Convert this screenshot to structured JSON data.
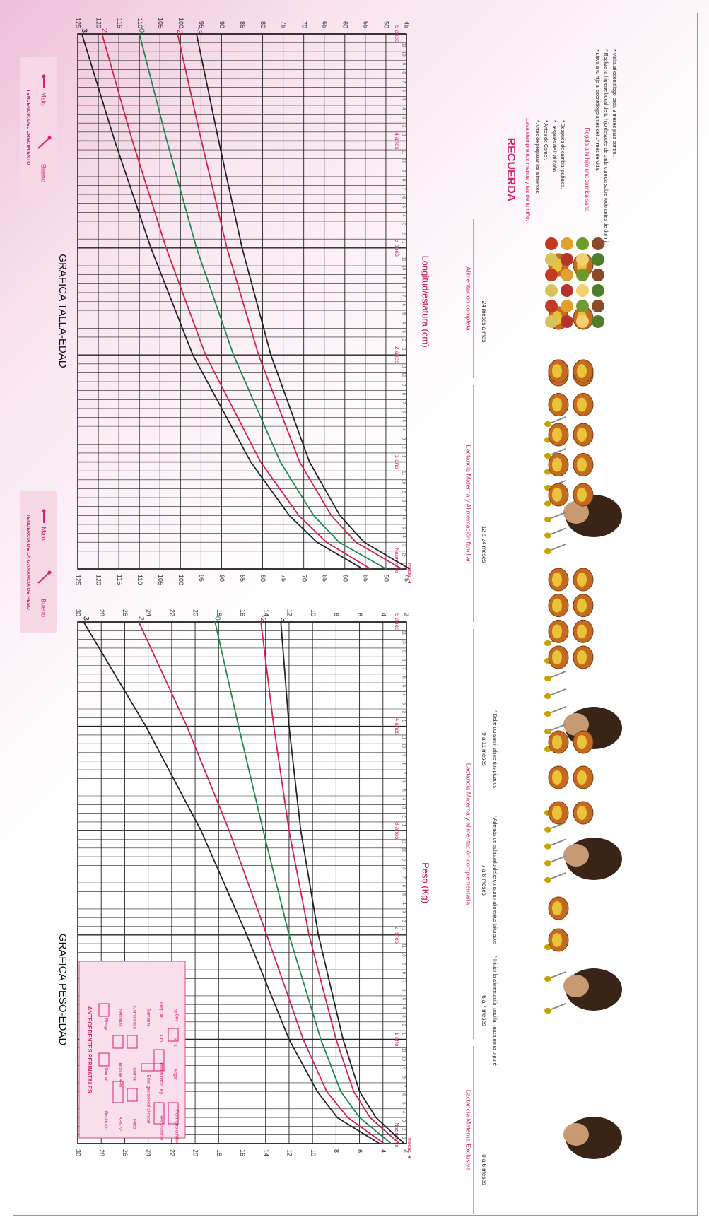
{
  "colors": {
    "magenta": "#d6226f",
    "pink": "#d6226f",
    "green": "#1e8a4c",
    "red": "#d6224a",
    "black": "#222222",
    "grid": "#222222"
  },
  "peso": {
    "title": "GRAFICA PESO-EDAD",
    "axis_label": "Peso (Kg)",
    "trend_title": "TENDENCIA DE LA GANANCIA DE PESO",
    "trend_good": "Bueno",
    "trend_bad": "Malo",
    "meses_label": "meses ◄",
    "nac_label": "Nacimiento",
    "year_labels": [
      "1 año",
      "2 años",
      "3 años",
      "4 años",
      "5 años"
    ],
    "antecedentes": {
      "title": "ANTECEDENTES PERINATALES",
      "labels": [
        "Gestación",
        "Normal",
        "Riesgo",
        "APN Nº",
        "Inicio de APN",
        "Semanas",
        "Parto",
        "Normal",
        "Complicado",
        "Edad gestacional al nacer",
        "Semanas",
        "Peso al nacer",
        "Kg.",
        "Talla al nacer",
        "Cm.",
        "Apgar",
        "1'",
        "5'",
        "Perímetro cefálico",
        "Cm.",
        "Hosp. inf.",
        "nb"
      ]
    }
  },
  "talla": {
    "title": "GRAFICA TALLA-EDAD",
    "axis_label": "Longitud/estatura (cm)",
    "trend_title": "TENDENCIA DEL CRECIMIENTO",
    "trend_good": "Bueno",
    "trend_bad": "Malo",
    "meses_label": "meses ◄",
    "nac_label": "Nacimiento",
    "year_labels": [
      "1 año",
      "2 años",
      "3 años",
      "4 años",
      "5 años"
    ]
  },
  "feeding": {
    "headers": [
      "Lactancia Materna Exclusiva",
      "Lactancia Materna y alimentación complementaria",
      "Lactancia Materna y Alimentación familiar",
      "Alimentación completa"
    ],
    "stages": [
      {
        "age": "0 a 6 meses",
        "note": ""
      },
      {
        "age": "6 a 7 meses",
        "note": "* Iniciar la alimentación papilla, mazamorra o puré"
      },
      {
        "age": "7 a 8 meses",
        "note": "* Además de aplastado debe consumir alimentos triturados"
      },
      {
        "age": "9 a 11 meses",
        "note": "* Debe consumir alimentos picados"
      },
      {
        "age": "12 a 24 meses",
        "note": ""
      },
      {
        "age": "24 meses a más",
        "note": ""
      }
    ]
  },
  "recuerda": {
    "title": "RECUERDA",
    "sub1": "Lava siempre tus manos y las de tu niño:",
    "items1": [
      "* Antes de preparar los alimentos.",
      "* Antes de Comer.",
      "* Después de ir al baño.",
      "* Después de cambiar pañales."
    ],
    "sub2": "Regala a tu hijo una sonrisa sana",
    "items2": [
      "* Lleva a tu hijo al odontólogo antes del 1º mes de vida.",
      "* Realiza la higiene bucal de tu hijo después de cada comida sobre todo antes de dormir.",
      "* Visita al odontólogo cada 3 meses para control."
    ]
  },
  "chart_data": [
    {
      "type": "line",
      "title": "GRAFICA PESO-EDAD",
      "xlabel": "meses",
      "ylabel": "Peso (Kg)",
      "xlim": [
        0,
        60
      ],
      "ylim": [
        2,
        30
      ],
      "y_ticks": [
        2,
        4,
        6,
        8,
        10,
        12,
        14,
        16,
        18,
        20,
        22,
        24,
        26,
        28,
        30
      ],
      "x_tick_labels": [
        "Nacimiento",
        "1 año",
        "2 años",
        "3 años",
        "4 años",
        "5 años"
      ],
      "series": [
        {
          "name": "3",
          "color": "#222222",
          "x": [
            0,
            3,
            6,
            12,
            24,
            36,
            48,
            60
          ],
          "y": [
            4.3,
            7.9,
            9.6,
            12.0,
            15.6,
            19.5,
            24.2,
            29.5
          ]
        },
        {
          "name": "2",
          "color": "#d6224a",
          "x": [
            0,
            3,
            6,
            12,
            24,
            36,
            48,
            60
          ],
          "y": [
            3.9,
            7.0,
            8.8,
            10.8,
            13.9,
            17.1,
            20.7,
            24.8
          ]
        },
        {
          "name": "0",
          "color": "#1e8a4c",
          "x": [
            0,
            3,
            6,
            12,
            24,
            36,
            48,
            60
          ],
          "y": [
            3.3,
            6.0,
            7.6,
            9.3,
            12.0,
            14.2,
            16.3,
            18.3
          ]
        },
        {
          "name": "-2",
          "color": "#d6224a",
          "x": [
            0,
            3,
            6,
            12,
            24,
            36,
            48,
            60
          ],
          "y": [
            2.6,
            5.1,
            6.5,
            8.0,
            10.3,
            12.0,
            13.3,
            14.4
          ]
        },
        {
          "name": "-3",
          "color": "#222222",
          "x": [
            0,
            3,
            6,
            12,
            24,
            36,
            48,
            60
          ],
          "y": [
            2.2,
            4.6,
            6.0,
            7.4,
            9.5,
            11.0,
            12.0,
            12.7
          ]
        }
      ]
    },
    {
      "type": "line",
      "title": "GRAFICA TALLA-EDAD",
      "xlabel": "meses",
      "ylabel": "Longitud/estatura (cm)",
      "xlim": [
        0,
        60
      ],
      "ylim": [
        45,
        125
      ],
      "y_ticks": [
        45,
        50,
        55,
        60,
        65,
        70,
        75,
        80,
        85,
        90,
        95,
        100,
        105,
        110,
        115,
        120,
        125
      ],
      "x_tick_labels": [
        "Nacimiento",
        "1 año",
        "2 años",
        "3 años",
        "4 años",
        "5 años"
      ],
      "series": [
        {
          "name": "3",
          "color": "#222222",
          "x": [
            0,
            3,
            6,
            12,
            24,
            36,
            48,
            60
          ],
          "y": [
            55.6,
            66.8,
            73.5,
            82.9,
            97.0,
            107.2,
            116.0,
            124.0
          ]
        },
        {
          "name": "2",
          "color": "#d6224a",
          "x": [
            0,
            3,
            6,
            12,
            24,
            36,
            48,
            60
          ],
          "y": [
            53.7,
            64.5,
            71.2,
            80.5,
            93.9,
            103.5,
            111.7,
            119.1
          ]
        },
        {
          "name": "0",
          "color": "#1e8a4c",
          "x": [
            0,
            3,
            6,
            12,
            24,
            36,
            48,
            60
          ],
          "y": [
            49.9,
            61.4,
            67.6,
            75.7,
            87.1,
            96.1,
            103.3,
            110.0
          ]
        },
        {
          "name": "-2",
          "color": "#d6224a",
          "x": [
            0,
            3,
            6,
            12,
            24,
            36,
            48,
            60
          ],
          "y": [
            46.1,
            57.3,
            63.3,
            71.0,
            81.0,
            88.7,
            94.9,
            100.7
          ]
        },
        {
          "name": "-3",
          "color": "#222222",
          "x": [
            0,
            3,
            6,
            12,
            24,
            36,
            48,
            60
          ],
          "y": [
            44.2,
            55.3,
            61.2,
            68.6,
            78.0,
            85.0,
            90.7,
            96.1
          ]
        }
      ]
    }
  ]
}
